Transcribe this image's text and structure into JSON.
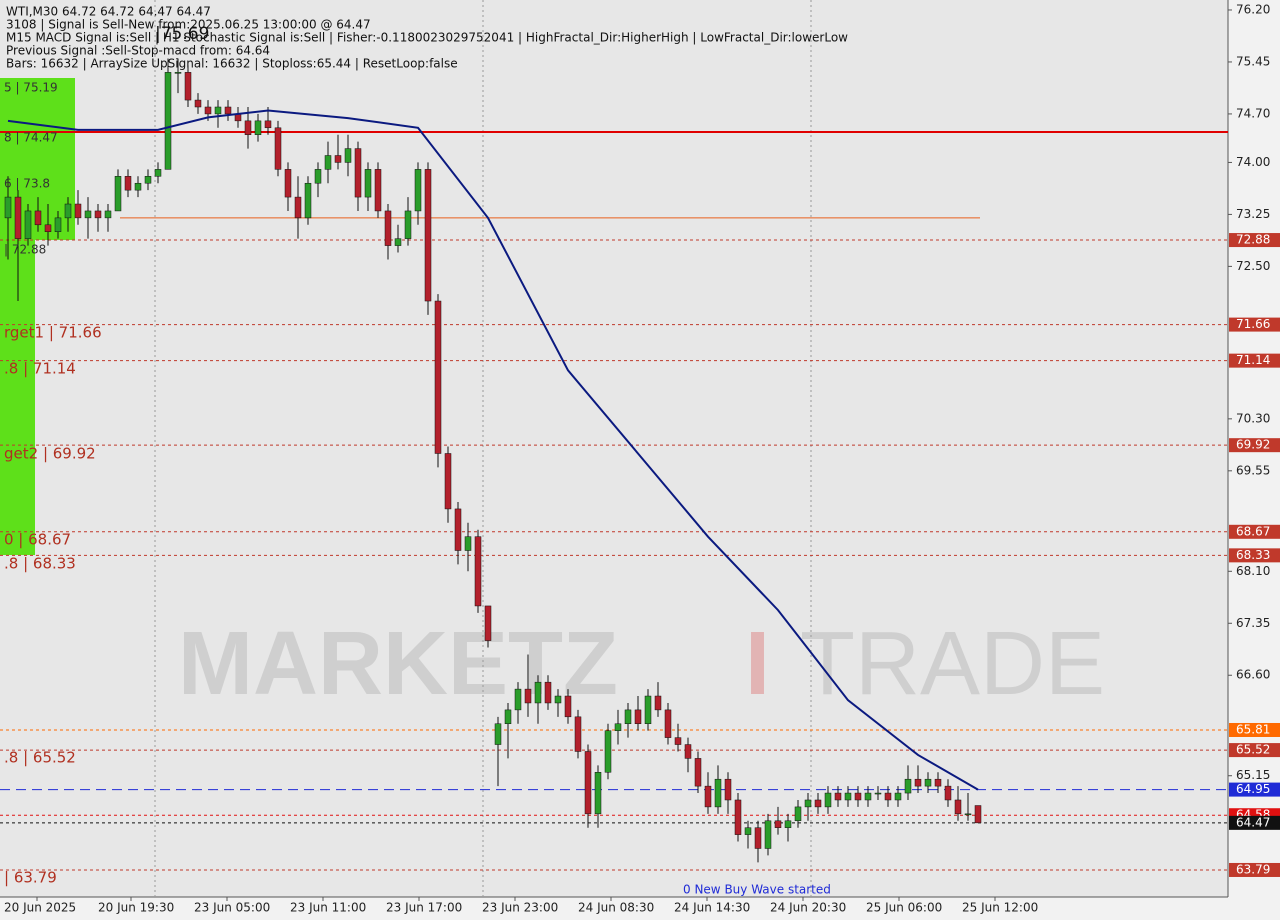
{
  "chart_data": {
    "type": "candlestick",
    "header": [
      "WTI,M30  64.72 64.72 64.47 64.47",
      "3108 | Signal is Sell-New from:2025.06.25 13:00:00 @ 64.47",
      "M15 MACD Signal is:Sell | H1 Stochastic Signal is:Sell | Fisher:-0.1180023029752041 | HighFractal_Dir:HigherHigh | LowFractal_Dir:lowerLow",
      "Previous Signal :Sell-Stop-macd from: 64.64",
      "Bars: 16632 | ArraySize UpSignal: 16632 | Stoploss:65.44 | ResetLoop:false"
    ],
    "top_note": "|75.69",
    "bottom_note": "0 New Buy Wave started",
    "watermark": [
      "MARKETZ",
      "I",
      "TRADE"
    ],
    "left_labels": [
      "5 | 75.19",
      "8 | 74.47",
      "6 | 73.8",
      "| 72.88",
      "rget1 | 71.66",
      ".8 | 71.14",
      "get2 | 69.92",
      "0 | 68.67",
      ".8 | 68.33",
      ".8 | 65.52",
      "| 63.79"
    ],
    "x_labels": [
      "20 Jun 2025",
      "20 Jun 19:30",
      "23 Jun 05:00",
      "23 Jun 11:00",
      "23 Jun 17:00",
      "23 Jun 23:00",
      "24 Jun 08:30",
      "24 Jun 14:30",
      "24 Jun 20:30",
      "25 Jun 06:00",
      "25 Jun 12:00"
    ],
    "ylim": [
      63.4,
      76.344
    ],
    "yticks": [
      {
        "value": 76.2,
        "label": "76.20"
      },
      75.45,
      {
        "value": 74.7,
        "label": "74.70"
      },
      {
        "value": 74,
        "label": "74.00"
      },
      73.25,
      {
        "value": 72.5,
        "label": "72.50"
      },
      {
        "value": 70.3,
        "label": "70.30"
      },
      69.55,
      {
        "value": 68.1,
        "label": "68.10"
      },
      67.35,
      {
        "value": 66.6,
        "label": "66.60"
      },
      65.15
    ],
    "levels": [
      {
        "value": 72.88,
        "color": "#c0392b"
      },
      {
        "value": 71.66,
        "color": "#c0392b"
      },
      {
        "value": 71.14,
        "color": "#c0392b"
      },
      {
        "value": 69.92,
        "color": "#c0392b"
      },
      {
        "value": 68.67,
        "color": "#c0392b"
      },
      {
        "value": 68.33,
        "color": "#c0392b"
      },
      {
        "value": 65.81,
        "color": "#ff6a00"
      },
      {
        "value": 65.52,
        "color": "#c0392b"
      },
      {
        "value": 64.95,
        "color": "#1f2bd6"
      },
      {
        "value": 64.58,
        "color": "#e01010"
      },
      {
        "value": 64.47,
        "color": "#111111"
      },
      {
        "value": 63.79,
        "color": "#c0392b"
      }
    ],
    "solid_lines": [
      {
        "value": 74.44,
        "color": "#e00000"
      },
      {
        "value": 73.2,
        "color": "#e8601c"
      }
    ],
    "bull_color": "#2a9d2a",
    "bear_color": "#b3202c",
    "ma_color": "#0b1a80",
    "candles": [
      [
        73.2,
        73.8,
        72.6,
        73.5
      ],
      [
        73.5,
        73.6,
        72.0,
        72.9
      ],
      [
        72.9,
        73.4,
        72.8,
        73.3
      ],
      [
        73.3,
        73.5,
        73.0,
        73.1
      ],
      [
        73.1,
        73.4,
        72.8,
        73.0
      ],
      [
        73.0,
        73.3,
        72.9,
        73.2
      ],
      [
        73.2,
        73.5,
        73.0,
        73.4
      ],
      [
        73.4,
        73.6,
        73.1,
        73.2
      ],
      [
        73.2,
        73.5,
        72.9,
        73.3
      ],
      [
        73.3,
        73.4,
        73.0,
        73.2
      ],
      [
        73.2,
        73.4,
        73.0,
        73.3
      ],
      [
        73.3,
        73.9,
        73.3,
        73.8
      ],
      [
        73.8,
        73.9,
        73.5,
        73.6
      ],
      [
        73.6,
        73.8,
        73.5,
        73.7
      ],
      [
        73.7,
        73.9,
        73.6,
        73.8
      ],
      [
        73.8,
        74.0,
        73.7,
        73.9
      ],
      [
        73.9,
        75.5,
        73.9,
        75.3
      ],
      [
        75.3,
        75.5,
        75.0,
        75.3
      ],
      [
        75.3,
        75.4,
        74.8,
        74.9
      ],
      [
        74.9,
        75.0,
        74.7,
        74.8
      ],
      [
        74.8,
        74.9,
        74.6,
        74.7
      ],
      [
        74.7,
        74.9,
        74.5,
        74.8
      ],
      [
        74.8,
        74.9,
        74.6,
        74.7
      ],
      [
        74.7,
        74.8,
        74.5,
        74.6
      ],
      [
        74.6,
        74.8,
        74.2,
        74.4
      ],
      [
        74.4,
        74.7,
        74.3,
        74.6
      ],
      [
        74.6,
        74.8,
        74.4,
        74.5
      ],
      [
        74.5,
        74.6,
        73.8,
        73.9
      ],
      [
        73.9,
        74.0,
        73.3,
        73.5
      ],
      [
        73.5,
        73.8,
        72.9,
        73.2
      ],
      [
        73.2,
        73.8,
        73.1,
        73.7
      ],
      [
        73.7,
        74.0,
        73.5,
        73.9
      ],
      [
        73.9,
        74.3,
        73.7,
        74.1
      ],
      [
        74.1,
        74.4,
        73.9,
        74.0
      ],
      [
        74.0,
        74.4,
        73.8,
        74.2
      ],
      [
        74.2,
        74.3,
        73.3,
        73.5
      ],
      [
        73.5,
        74.0,
        73.3,
        73.9
      ],
      [
        73.9,
        74.0,
        73.2,
        73.3
      ],
      [
        73.3,
        73.4,
        72.6,
        72.8
      ],
      [
        72.8,
        73.1,
        72.7,
        72.9
      ],
      [
        72.9,
        73.5,
        72.8,
        73.3
      ],
      [
        73.3,
        74.0,
        73.1,
        73.9
      ],
      [
        73.9,
        74.0,
        71.8,
        72.0
      ],
      [
        72.0,
        72.1,
        69.6,
        69.8
      ],
      [
        69.8,
        69.9,
        68.8,
        69.0
      ],
      [
        69.0,
        69.1,
        68.2,
        68.4
      ],
      [
        68.4,
        68.8,
        68.1,
        68.6
      ],
      [
        68.6,
        68.7,
        67.5,
        67.6
      ],
      [
        67.6,
        67.6,
        67.0,
        67.1
      ],
      [
        65.6,
        66.0,
        65.0,
        65.9
      ],
      [
        65.9,
        66.2,
        65.4,
        66.1
      ],
      [
        66.1,
        66.5,
        65.9,
        66.4
      ],
      [
        66.4,
        66.9,
        66.0,
        66.2
      ],
      [
        66.2,
        66.6,
        65.9,
        66.5
      ],
      [
        66.5,
        66.6,
        66.1,
        66.2
      ],
      [
        66.2,
        66.4,
        66.0,
        66.3
      ],
      [
        66.3,
        66.4,
        65.9,
        66.0
      ],
      [
        66.0,
        66.1,
        65.4,
        65.5
      ],
      [
        65.5,
        65.6,
        64.4,
        64.6
      ],
      [
        64.6,
        65.3,
        64.4,
        65.2
      ],
      [
        65.2,
        65.9,
        65.1,
        65.8
      ],
      [
        65.8,
        66.1,
        65.6,
        65.9
      ],
      [
        65.9,
        66.2,
        65.7,
        66.1
      ],
      [
        66.1,
        66.3,
        65.8,
        65.9
      ],
      [
        65.9,
        66.4,
        65.8,
        66.3
      ],
      [
        66.3,
        66.5,
        66.0,
        66.1
      ],
      [
        66.1,
        66.2,
        65.6,
        65.7
      ],
      [
        65.7,
        65.9,
        65.5,
        65.6
      ],
      [
        65.6,
        65.7,
        65.2,
        65.4
      ],
      [
        65.4,
        65.5,
        64.9,
        65.0
      ],
      [
        65.0,
        65.2,
        64.6,
        64.7
      ],
      [
        64.7,
        65.3,
        64.6,
        65.1
      ],
      [
        65.1,
        65.2,
        64.6,
        64.8
      ],
      [
        64.8,
        64.9,
        64.2,
        64.3
      ],
      [
        64.3,
        64.5,
        64.1,
        64.4
      ],
      [
        64.4,
        64.5,
        63.9,
        64.1
      ],
      [
        64.1,
        64.6,
        64.0,
        64.5
      ],
      [
        64.5,
        64.7,
        64.3,
        64.4
      ],
      [
        64.4,
        64.6,
        64.2,
        64.5
      ],
      [
        64.5,
        64.8,
        64.4,
        64.7
      ],
      [
        64.7,
        64.9,
        64.5,
        64.8
      ],
      [
        64.8,
        64.9,
        64.6,
        64.7
      ],
      [
        64.7,
        65.0,
        64.6,
        64.9
      ],
      [
        64.9,
        65.0,
        64.7,
        64.8
      ],
      [
        64.8,
        65.0,
        64.7,
        64.9
      ],
      [
        64.9,
        65.0,
        64.7,
        64.8
      ],
      [
        64.8,
        65.0,
        64.7,
        64.9
      ],
      [
        64.9,
        65.0,
        64.8,
        64.9
      ],
      [
        64.9,
        65.0,
        64.7,
        64.8
      ],
      [
        64.8,
        65.0,
        64.7,
        64.9
      ],
      [
        64.9,
        65.3,
        64.8,
        65.1
      ],
      [
        65.1,
        65.3,
        64.9,
        65.0
      ],
      [
        65.0,
        65.2,
        64.9,
        65.1
      ],
      [
        65.1,
        65.2,
        64.9,
        65.0
      ],
      [
        65.0,
        65.1,
        64.7,
        64.8
      ],
      [
        64.8,
        65.0,
        64.5,
        64.6
      ],
      [
        64.6,
        64.9,
        64.5,
        64.6
      ],
      [
        64.72,
        64.72,
        64.47,
        64.47
      ]
    ],
    "ma": {
      "x": [
        0,
        7,
        15,
        20,
        26,
        34,
        41,
        48,
        56,
        63,
        70,
        77,
        84,
        91,
        97
      ],
      "values": [
        74.6,
        74.47,
        74.47,
        74.65,
        74.75,
        74.64,
        74.5,
        73.2,
        71.0,
        69.8,
        68.6,
        67.54,
        66.24,
        65.45,
        64.95
      ]
    }
  }
}
